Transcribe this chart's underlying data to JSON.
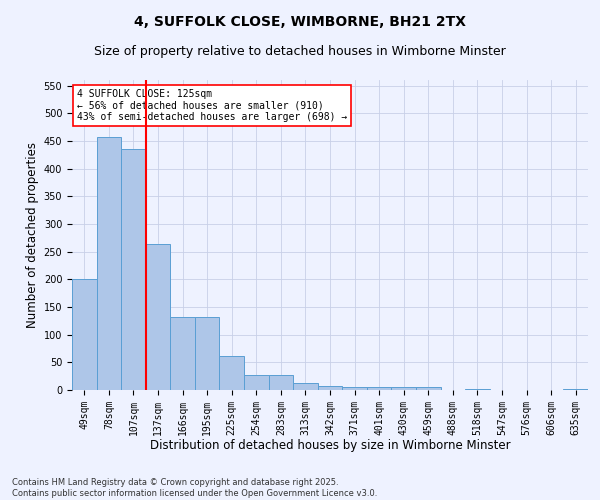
{
  "title1": "4, SUFFOLK CLOSE, WIMBORNE, BH21 2TX",
  "title2": "Size of property relative to detached houses in Wimborne Minster",
  "xlabel": "Distribution of detached houses by size in Wimborne Minster",
  "ylabel": "Number of detached properties",
  "categories": [
    "49sqm",
    "78sqm",
    "107sqm",
    "137sqm",
    "166sqm",
    "195sqm",
    "225sqm",
    "254sqm",
    "283sqm",
    "313sqm",
    "342sqm",
    "371sqm",
    "401sqm",
    "430sqm",
    "459sqm",
    "488sqm",
    "518sqm",
    "547sqm",
    "576sqm",
    "606sqm",
    "635sqm"
  ],
  "values": [
    200,
    457,
    435,
    263,
    131,
    131,
    62,
    28,
    28,
    12,
    8,
    5,
    5,
    5,
    5,
    0,
    2,
    0,
    0,
    0,
    2
  ],
  "bar_color": "#aec6e8",
  "bar_edge_color": "#5a9fd4",
  "vline_x": 2.5,
  "vline_color": "red",
  "annotation_text": "4 SUFFOLK CLOSE: 125sqm\n← 56% of detached houses are smaller (910)\n43% of semi-detached houses are larger (698) →",
  "annotation_box_color": "white",
  "annotation_box_edge": "red",
  "ylim": [
    0,
    560
  ],
  "yticks": [
    0,
    50,
    100,
    150,
    200,
    250,
    300,
    350,
    400,
    450,
    500,
    550
  ],
  "footer": "Contains HM Land Registry data © Crown copyright and database right 2025.\nContains public sector information licensed under the Open Government Licence v3.0.",
  "bg_color": "#eef2ff",
  "grid_color": "#c8d0e8",
  "title_fontsize": 10,
  "subtitle_fontsize": 9,
  "tick_fontsize": 7,
  "label_fontsize": 8.5,
  "footer_fontsize": 6
}
